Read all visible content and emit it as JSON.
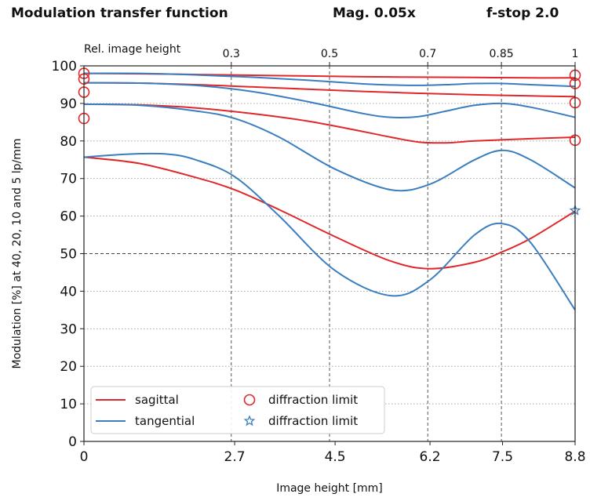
{
  "header": {
    "title": "Modulation transfer function",
    "magnification": "Mag. 0.05x",
    "fstop": "f-stop 2.0"
  },
  "chart_data": {
    "type": "line",
    "xlabel": "Image height [mm]",
    "ylabel": "Modulation [%] at 40, 20, 10 and 5 lp/mm",
    "xlim": [
      0,
      8.8
    ],
    "ylim": [
      0,
      100
    ],
    "x_ticks": [
      0,
      2.7,
      4.5,
      6.2,
      7.5,
      8.8
    ],
    "x_tick_labels": [
      "0",
      "2.7",
      "4.5",
      "6.2",
      "7.5",
      "8.8"
    ],
    "y_ticks": [
      0,
      10,
      20,
      30,
      40,
      50,
      60,
      70,
      80,
      90,
      100
    ],
    "y_tick_labels": [
      "0",
      "10",
      "20",
      "30",
      "40",
      "50",
      "60",
      "70",
      "80",
      "90",
      "100"
    ],
    "top_axis": {
      "label": "Rel. image height",
      "ticks": [
        2.64,
        4.4,
        6.16,
        7.48,
        8.8
      ],
      "tick_labels": [
        "0.3",
        "0.5",
        "0.7",
        "0.85",
        "1"
      ]
    },
    "grid": "dotted",
    "reference_line_y": 50,
    "legend_position": "bottom-left",
    "legend": {
      "sagittal": "sagittal",
      "tangential": "tangential",
      "diffraction_sagittal": "diffraction limit",
      "diffraction_tangential": "diffraction limit"
    },
    "colors": {
      "sagittal": "#e0282a",
      "tangential": "#3a7ebf"
    },
    "series": [
      {
        "kind": "sagittal",
        "x": [
          0,
          1,
          2,
          3,
          4,
          5,
          6,
          7,
          8,
          8.8
        ],
        "values": [
          98,
          97.9,
          97.7,
          97.5,
          97.3,
          97.1,
          97.0,
          96.9,
          96.8,
          96.8
        ]
      },
      {
        "kind": "tangential",
        "x": [
          0,
          1,
          2,
          3,
          4,
          5,
          5.5,
          6,
          6.5,
          7,
          7.5,
          8,
          8.8
        ],
        "values": [
          98,
          98,
          97.6,
          97,
          96.2,
          95.2,
          94.9,
          94.8,
          95.0,
          95.3,
          95.3,
          95.0,
          94.5
        ]
      },
      {
        "kind": "sagittal",
        "x": [
          0,
          1,
          2,
          3,
          4,
          5,
          6,
          7,
          8,
          8.8
        ],
        "values": [
          95.5,
          95.4,
          95.0,
          94.4,
          93.8,
          93.2,
          92.7,
          92.3,
          92.0,
          91.8
        ]
      },
      {
        "kind": "tangential",
        "x": [
          0,
          1,
          2,
          3,
          4,
          5,
          5.5,
          6,
          6.5,
          7,
          7.5,
          8,
          8.8
        ],
        "values": [
          95.5,
          95.4,
          94.8,
          93.2,
          90.5,
          87.3,
          86.3,
          86.5,
          88,
          89.5,
          90,
          89,
          86.3
        ]
      },
      {
        "kind": "sagittal",
        "x": [
          0,
          1,
          2,
          3,
          4,
          5,
          5.5,
          6,
          6.5,
          7,
          8,
          8.8
        ],
        "values": [
          89.8,
          89.6,
          88.8,
          87.3,
          85.3,
          82.5,
          81,
          79.7,
          79.5,
          80,
          80.6,
          81.0
        ]
      },
      {
        "kind": "tangential",
        "x": [
          0,
          1,
          2,
          2.7,
          3.5,
          4.5,
          5.5,
          6.2,
          7,
          7.5,
          8,
          8.8
        ],
        "values": [
          89.8,
          89.5,
          88,
          86,
          81,
          72.5,
          67,
          68.5,
          75,
          77.5,
          75,
          67.5
        ]
      },
      {
        "kind": "sagittal",
        "x": [
          0,
          1,
          2,
          2.7,
          3.5,
          4.5,
          5.5,
          6.2,
          7,
          7.5,
          8,
          8.8
        ],
        "values": [
          75.7,
          74,
          70.3,
          67,
          61.7,
          54.5,
          48,
          46,
          47.7,
          50.5,
          54,
          61.3
        ]
      },
      {
        "kind": "tangential",
        "x": [
          0,
          0.8,
          1.5,
          2,
          2.7,
          3.5,
          4.5,
          5.5,
          6.2,
          7,
          7.5,
          8,
          8.8
        ],
        "values": [
          75.7,
          76.5,
          76.5,
          75,
          70.5,
          60,
          45.5,
          38.8,
          43,
          55,
          58,
          53,
          35
        ]
      }
    ],
    "diffraction_limit_sagittal": [
      {
        "x": 0,
        "y": 98
      },
      {
        "x": 0,
        "y": 96.5
      },
      {
        "x": 0,
        "y": 93
      },
      {
        "x": 0,
        "y": 86
      },
      {
        "x": 8.8,
        "y": 97.5
      },
      {
        "x": 8.8,
        "y": 95.3
      },
      {
        "x": 8.8,
        "y": 90.2
      },
      {
        "x": 8.8,
        "y": 80.2
      }
    ],
    "diffraction_limit_tangential": [
      {
        "x": 8.8,
        "y": 61.5
      }
    ]
  }
}
